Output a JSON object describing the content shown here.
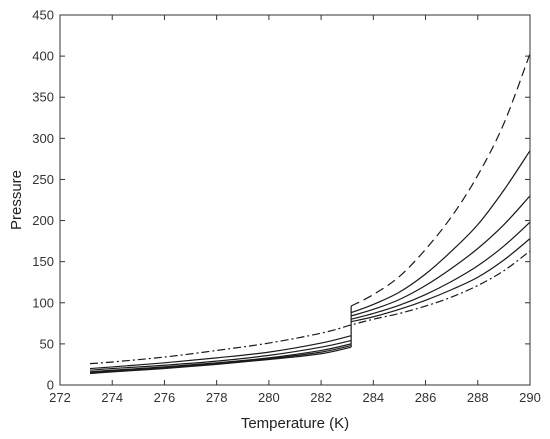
{
  "chart_data": {
    "type": "line",
    "title": "",
    "xlabel": "Temperature (K)",
    "ylabel": "Pressure",
    "xlim": [
      272,
      290
    ],
    "ylim": [
      0,
      450
    ],
    "xticks": [
      272,
      274,
      276,
      278,
      280,
      282,
      284,
      286,
      288,
      290
    ],
    "yticks": [
      0,
      50,
      100,
      150,
      200,
      250,
      300,
      350,
      400,
      450
    ],
    "grid": false,
    "legend": "none",
    "line_color": "#1a1a1a",
    "series": [
      {
        "style": "dashed",
        "x": [
          283.15,
          284,
          285,
          286,
          287,
          288,
          289,
          290
        ],
        "y": [
          96,
          110,
          132,
          165,
          205,
          255,
          318,
          403
        ]
      },
      {
        "style": "solid",
        "x": [
          283.15,
          284,
          285,
          286,
          287,
          288,
          289,
          290
        ],
        "y": [
          88,
          98,
          113,
          135,
          163,
          195,
          237,
          285
        ]
      },
      {
        "style": "solid",
        "x": [
          283.15,
          284,
          285,
          286,
          287,
          288,
          289,
          290
        ],
        "y": [
          84,
          92,
          104,
          121,
          142,
          166,
          195,
          230
        ]
      },
      {
        "style": "solid",
        "x": [
          283.15,
          284,
          285,
          286,
          287,
          288,
          289,
          290
        ],
        "y": [
          80,
          87,
          97,
          110,
          126,
          145,
          169,
          198
        ]
      },
      {
        "style": "solid",
        "x": [
          283.15,
          284,
          285,
          286,
          287,
          288,
          289,
          290
        ],
        "y": [
          77,
          83,
          92,
          103,
          116,
          131,
          152,
          178
        ]
      },
      {
        "style": "dashdot",
        "x": [
          273.15,
          274,
          276,
          278,
          280,
          282,
          283.15,
          284,
          285,
          286,
          287,
          288,
          289,
          290
        ],
        "y": [
          26,
          28,
          34,
          42,
          51,
          63,
          73,
          80,
          87,
          96,
          107,
          121,
          139,
          163
        ]
      },
      {
        "style": "solid",
        "x": [
          273.15,
          274,
          276,
          278,
          280,
          282,
          283.15
        ],
        "y": [
          20,
          22,
          27,
          33,
          40,
          51,
          60
        ]
      },
      {
        "style": "solid",
        "x": [
          273.15,
          274,
          276,
          278,
          280,
          282,
          283.15
        ],
        "y": [
          18,
          20,
          24,
          29,
          36,
          46,
          54
        ]
      },
      {
        "style": "solid",
        "x": [
          273.15,
          274,
          276,
          278,
          280,
          282,
          283.15
        ],
        "y": [
          16,
          18,
          22,
          27,
          33,
          42,
          50
        ]
      },
      {
        "style": "solid",
        "x": [
          273.15,
          274,
          276,
          278,
          280,
          282,
          283.15
        ],
        "y": [
          15,
          17,
          21,
          26,
          32,
          40,
          48
        ]
      },
      {
        "style": "solid",
        "x": [
          273.15,
          274,
          276,
          278,
          280,
          282,
          283.15
        ],
        "y": [
          14,
          16,
          20,
          25,
          31,
          38,
          46
        ]
      },
      {
        "style": "solid",
        "x": [
          283.15,
          283.15
        ],
        "y": [
          46,
          96
        ]
      }
    ]
  }
}
